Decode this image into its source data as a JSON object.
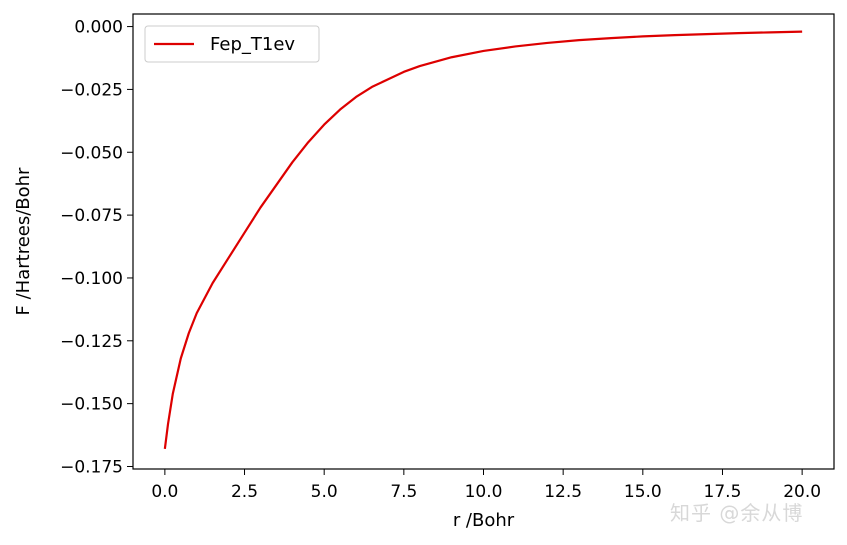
{
  "chart_data": {
    "type": "line",
    "xlabel": "r /Bohr",
    "ylabel": "F /Hartrees/Bohr",
    "xlim": [
      -1.0,
      21.0
    ],
    "ylim": [
      -0.176,
      0.005
    ],
    "xticks": [
      0.0,
      2.5,
      5.0,
      7.5,
      10.0,
      12.5,
      15.0,
      17.5,
      20.0
    ],
    "xtick_labels": [
      "0.0",
      "2.5",
      "5.0",
      "7.5",
      "10.0",
      "12.5",
      "15.0",
      "17.5",
      "20.0"
    ],
    "yticks": [
      0.0,
      -0.025,
      -0.05,
      -0.075,
      -0.1,
      -0.125,
      -0.15,
      -0.175
    ],
    "ytick_labels": [
      "0.000",
      "−0.025",
      "−0.050",
      "−0.075",
      "−0.100",
      "−0.125",
      "−0.150",
      "−0.175"
    ],
    "grid": false,
    "legend_position": "top-left",
    "series": [
      {
        "name": "Fep_T1ev",
        "color": "#dd0000",
        "x": [
          0.0,
          0.1,
          0.25,
          0.5,
          0.75,
          1.0,
          1.5,
          2.0,
          2.5,
          3.0,
          3.5,
          4.0,
          4.5,
          5.0,
          5.5,
          6.0,
          6.5,
          7.0,
          7.5,
          8.0,
          9.0,
          10.0,
          11.0,
          12.0,
          13.0,
          14.0,
          15.0,
          16.0,
          17.0,
          18.0,
          19.0,
          20.0
        ],
        "y": [
          -0.168,
          -0.158,
          -0.146,
          -0.132,
          -0.122,
          -0.114,
          -0.102,
          -0.092,
          -0.082,
          -0.072,
          -0.063,
          -0.054,
          -0.046,
          -0.039,
          -0.033,
          -0.028,
          -0.024,
          -0.021,
          -0.018,
          -0.0157,
          -0.0122,
          -0.0097,
          -0.0079,
          -0.0065,
          -0.0054,
          -0.0046,
          -0.0039,
          -0.0034,
          -0.003,
          -0.0026,
          -0.0023,
          -0.002
        ]
      }
    ]
  },
  "watermark": "知乎 @余从博"
}
